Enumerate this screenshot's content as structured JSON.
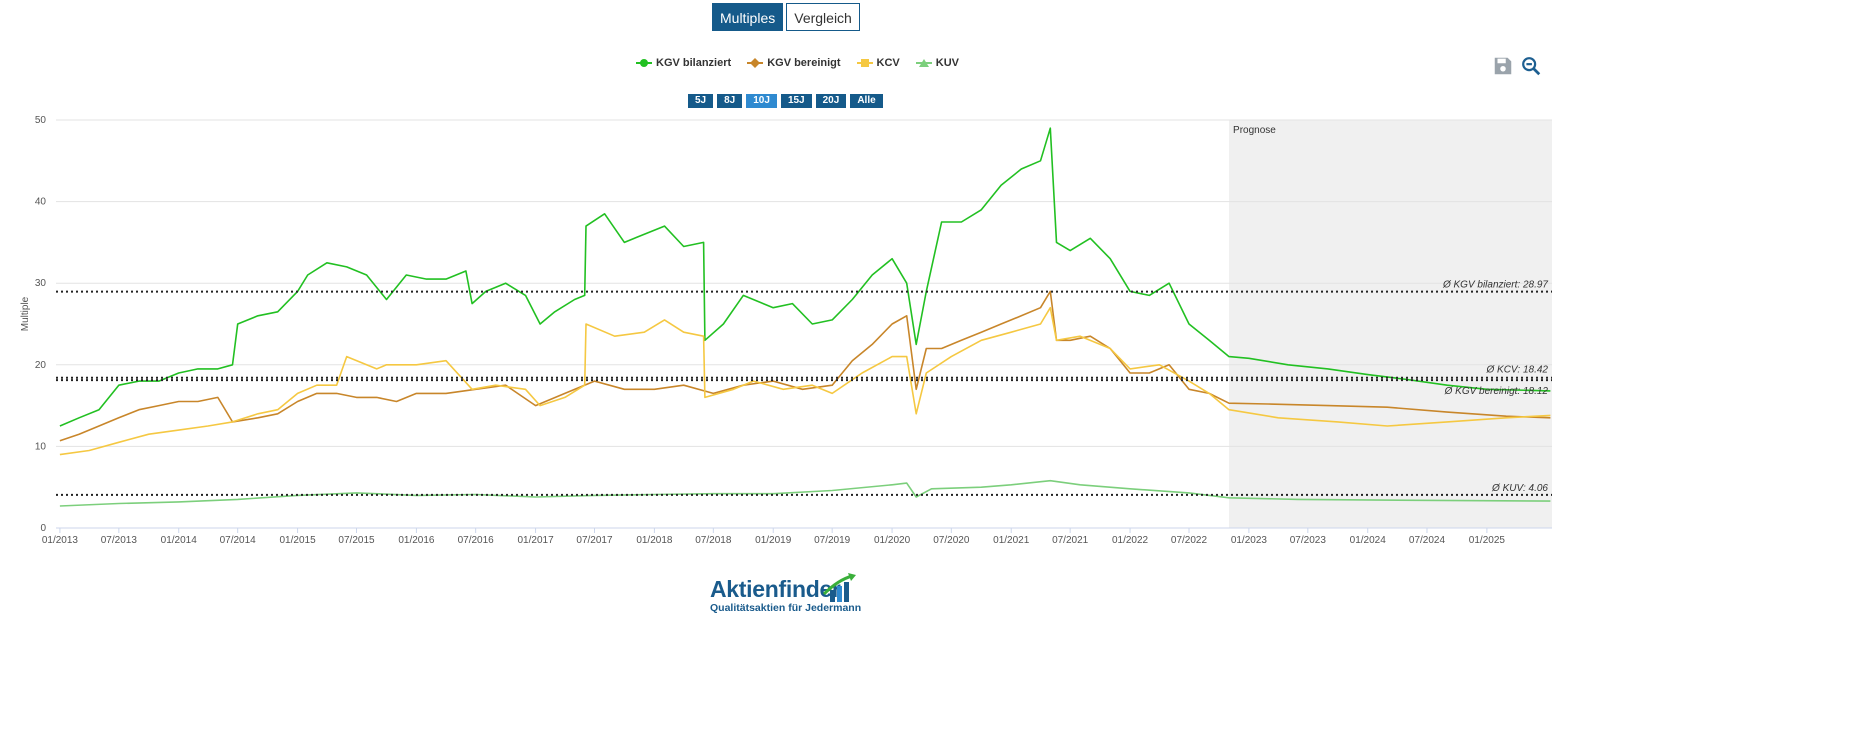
{
  "toolbar": {
    "multiples_label": "Multiples",
    "vergleich_label": "Vergleich"
  },
  "range_buttons": [
    "5J",
    "8J",
    "10J",
    "15J",
    "20J",
    "Alle"
  ],
  "active_range": "10J",
  "icons": {
    "save": "save-icon",
    "zoom_out": "zoom-out-icon"
  },
  "logo": {
    "title": "Aktienfinder",
    "subtitle": "Qualitätsaktien für Jedermann"
  },
  "chart_data": {
    "type": "line",
    "title": "",
    "xlabel": "",
    "ylabel": "Multiple",
    "ylim": [
      0,
      50
    ],
    "y_ticks": [
      0,
      10,
      20,
      30,
      40,
      50
    ],
    "x_range": [
      "2012-12-20",
      "2025-07-20"
    ],
    "x_ticks": [
      "01/2013",
      "07/2013",
      "01/2014",
      "07/2014",
      "01/2015",
      "07/2015",
      "01/2016",
      "07/2016",
      "01/2017",
      "07/2017",
      "01/2018",
      "07/2018",
      "01/2019",
      "07/2019",
      "01/2020",
      "07/2020",
      "01/2021",
      "07/2021",
      "01/2022",
      "07/2022",
      "01/2023",
      "07/2023",
      "01/2024",
      "07/2024",
      "01/2025"
    ],
    "grid": true,
    "legend_position": "top-center",
    "forecast_band": {
      "label": "Prognose",
      "start": "2022-11-01",
      "end": "2025-07-20",
      "color": "#f0f0f0"
    },
    "series": [
      {
        "name": "KGV bilanziert",
        "color": "#22c022",
        "marker": "circle",
        "points": [
          [
            "2013-01-01",
            12.5
          ],
          [
            "2013-03-01",
            13.5
          ],
          [
            "2013-05-01",
            14.5
          ],
          [
            "2013-07-01",
            17.5
          ],
          [
            "2013-09-01",
            18
          ],
          [
            "2013-11-01",
            18
          ],
          [
            "2014-01-01",
            19
          ],
          [
            "2014-03-01",
            19.5
          ],
          [
            "2014-05-01",
            19.5
          ],
          [
            "2014-06-15",
            20
          ],
          [
            "2014-07-01",
            25
          ],
          [
            "2014-09-01",
            26
          ],
          [
            "2014-11-01",
            26.5
          ],
          [
            "2015-01-01",
            29
          ],
          [
            "2015-02-01",
            31
          ],
          [
            "2015-04-01",
            32.5
          ],
          [
            "2015-06-01",
            32
          ],
          [
            "2015-08-01",
            31
          ],
          [
            "2015-10-01",
            28
          ],
          [
            "2015-12-01",
            31
          ],
          [
            "2016-02-01",
            30.5
          ],
          [
            "2016-04-01",
            30.5
          ],
          [
            "2016-06-01",
            31.5
          ],
          [
            "2016-06-20",
            27.5
          ],
          [
            "2016-08-01",
            29
          ],
          [
            "2016-10-01",
            30
          ],
          [
            "2016-12-01",
            28.5
          ],
          [
            "2017-01-15",
            25
          ],
          [
            "2017-03-01",
            26.5
          ],
          [
            "2017-05-01",
            28
          ],
          [
            "2017-06-01",
            28.5
          ],
          [
            "2017-06-05",
            37
          ],
          [
            "2017-08-01",
            38.5
          ],
          [
            "2017-10-01",
            35
          ],
          [
            "2017-12-01",
            36
          ],
          [
            "2018-02-01",
            37
          ],
          [
            "2018-04-01",
            34.5
          ],
          [
            "2018-06-01",
            35
          ],
          [
            "2018-06-05",
            23
          ],
          [
            "2018-08-01",
            25
          ],
          [
            "2018-10-01",
            28.5
          ],
          [
            "2019-01-01",
            27
          ],
          [
            "2019-03-01",
            27.5
          ],
          [
            "2019-05-01",
            25
          ],
          [
            "2019-07-01",
            25.5
          ],
          [
            "2019-09-01",
            28
          ],
          [
            "2019-11-01",
            31
          ],
          [
            "2020-01-01",
            33
          ],
          [
            "2020-02-15",
            30
          ],
          [
            "2020-03-15",
            22.5
          ],
          [
            "2020-04-15",
            29
          ],
          [
            "2020-06-01",
            37.5
          ],
          [
            "2020-08-01",
            37.5
          ],
          [
            "2020-10-01",
            39
          ],
          [
            "2020-12-01",
            42
          ],
          [
            "2021-02-01",
            44
          ],
          [
            "2021-04-01",
            45
          ],
          [
            "2021-05-01",
            49
          ],
          [
            "2021-05-20",
            35
          ],
          [
            "2021-07-01",
            34
          ],
          [
            "2021-09-01",
            35.5
          ],
          [
            "2021-11-01",
            33
          ],
          [
            "2022-01-01",
            29
          ],
          [
            "2022-03-01",
            28.5
          ],
          [
            "2022-05-01",
            30
          ],
          [
            "2022-07-01",
            25
          ],
          [
            "2022-09-01",
            23
          ],
          [
            "2022-11-01",
            21
          ],
          [
            "2023-01-01",
            20.8
          ],
          [
            "2023-05-01",
            20
          ],
          [
            "2023-09-01",
            19.5
          ],
          [
            "2024-01-01",
            18.8
          ],
          [
            "2024-05-01",
            18.2
          ],
          [
            "2024-09-01",
            17.5
          ],
          [
            "2025-01-01",
            17
          ],
          [
            "2025-07-15",
            16.8
          ]
        ]
      },
      {
        "name": "KGV bereinigt",
        "color": "#c8862a",
        "marker": "diamond",
        "points": [
          [
            "2013-01-01",
            10.7
          ],
          [
            "2013-03-01",
            11.5
          ],
          [
            "2013-05-01",
            12.5
          ],
          [
            "2013-07-01",
            13.5
          ],
          [
            "2013-09-01",
            14.5
          ],
          [
            "2013-11-01",
            15
          ],
          [
            "2014-01-01",
            15.5
          ],
          [
            "2014-03-01",
            15.5
          ],
          [
            "2014-05-01",
            16
          ],
          [
            "2014-06-15",
            13
          ],
          [
            "2014-09-01",
            13.5
          ],
          [
            "2014-11-01",
            14
          ],
          [
            "2015-01-01",
            15.5
          ],
          [
            "2015-03-01",
            16.5
          ],
          [
            "2015-05-01",
            16.5
          ],
          [
            "2015-07-01",
            16
          ],
          [
            "2015-09-01",
            16
          ],
          [
            "2015-11-01",
            15.5
          ],
          [
            "2016-01-01",
            16.5
          ],
          [
            "2016-04-01",
            16.5
          ],
          [
            "2016-07-01",
            17
          ],
          [
            "2016-10-01",
            17.5
          ],
          [
            "2017-01-01",
            15
          ],
          [
            "2017-04-01",
            16.5
          ],
          [
            "2017-07-01",
            18
          ],
          [
            "2017-10-01",
            17
          ],
          [
            "2018-01-01",
            17
          ],
          [
            "2018-04-01",
            17.5
          ],
          [
            "2018-07-01",
            16.5
          ],
          [
            "2018-10-01",
            17.5
          ],
          [
            "2019-01-01",
            18
          ],
          [
            "2019-04-01",
            17
          ],
          [
            "2019-07-01",
            17.5
          ],
          [
            "2019-09-01",
            20.5
          ],
          [
            "2019-11-01",
            22.5
          ],
          [
            "2020-01-01",
            25
          ],
          [
            "2020-02-15",
            26
          ],
          [
            "2020-03-15",
            17
          ],
          [
            "2020-04-15",
            22
          ],
          [
            "2020-06-01",
            22
          ],
          [
            "2020-08-01",
            23
          ],
          [
            "2020-10-01",
            24
          ],
          [
            "2020-12-01",
            25
          ],
          [
            "2021-02-01",
            26
          ],
          [
            "2021-04-01",
            27
          ],
          [
            "2021-05-01",
            29
          ],
          [
            "2021-05-20",
            23
          ],
          [
            "2021-07-01",
            23
          ],
          [
            "2021-09-01",
            23.5
          ],
          [
            "2021-11-01",
            22
          ],
          [
            "2022-01-01",
            19
          ],
          [
            "2022-03-01",
            19
          ],
          [
            "2022-05-01",
            20
          ],
          [
            "2022-07-01",
            17
          ],
          [
            "2022-09-01",
            16.5
          ],
          [
            "2022-11-01",
            15.3
          ],
          [
            "2023-03-01",
            15.2
          ],
          [
            "2023-09-01",
            15
          ],
          [
            "2024-03-01",
            14.8
          ],
          [
            "2024-09-01",
            14.2
          ],
          [
            "2025-03-01",
            13.7
          ],
          [
            "2025-07-15",
            13.5
          ]
        ]
      },
      {
        "name": "KCV",
        "color": "#f5c842",
        "marker": "square",
        "points": [
          [
            "2013-01-01",
            9
          ],
          [
            "2013-04-01",
            9.5
          ],
          [
            "2013-07-01",
            10.5
          ],
          [
            "2013-10-01",
            11.5
          ],
          [
            "2014-01-01",
            12
          ],
          [
            "2014-04-01",
            12.5
          ],
          [
            "2014-06-15",
            13
          ],
          [
            "2014-09-01",
            14
          ],
          [
            "2014-11-01",
            14.5
          ],
          [
            "2015-01-01",
            16.5
          ],
          [
            "2015-03-01",
            17.5
          ],
          [
            "2015-05-01",
            17.5
          ],
          [
            "2015-06-01",
            21
          ],
          [
            "2015-09-01",
            19.5
          ],
          [
            "2015-10-01",
            20
          ],
          [
            "2016-01-01",
            20
          ],
          [
            "2016-04-01",
            20.5
          ],
          [
            "2016-06-20",
            17
          ],
          [
            "2016-09-01",
            17.5
          ],
          [
            "2016-12-01",
            17
          ],
          [
            "2017-01-15",
            15
          ],
          [
            "2017-04-01",
            16
          ],
          [
            "2017-06-01",
            17.5
          ],
          [
            "2017-06-05",
            25
          ],
          [
            "2017-09-01",
            23.5
          ],
          [
            "2017-12-01",
            24
          ],
          [
            "2018-02-01",
            25.5
          ],
          [
            "2018-04-01",
            24
          ],
          [
            "2018-06-01",
            23.5
          ],
          [
            "2018-06-05",
            16
          ],
          [
            "2018-09-01",
            17
          ],
          [
            "2018-11-01",
            18
          ],
          [
            "2019-02-01",
            17
          ],
          [
            "2019-05-01",
            17.5
          ],
          [
            "2019-07-01",
            16.5
          ],
          [
            "2019-10-01",
            19
          ],
          [
            "2020-01-01",
            21
          ],
          [
            "2020-02-15",
            21
          ],
          [
            "2020-03-15",
            14
          ],
          [
            "2020-04-15",
            19
          ],
          [
            "2020-07-01",
            21
          ],
          [
            "2020-10-01",
            23
          ],
          [
            "2021-01-01",
            24
          ],
          [
            "2021-04-01",
            25
          ],
          [
            "2021-05-01",
            27
          ],
          [
            "2021-05-20",
            23
          ],
          [
            "2021-08-01",
            23.5
          ],
          [
            "2021-11-01",
            22
          ],
          [
            "2022-01-01",
            19.5
          ],
          [
            "2022-04-01",
            20
          ],
          [
            "2022-07-01",
            18
          ],
          [
            "2022-09-01",
            16.5
          ],
          [
            "2022-11-01",
            14.5
          ],
          [
            "2023-04-01",
            13.5
          ],
          [
            "2023-10-01",
            13
          ],
          [
            "2024-03-01",
            12.5
          ],
          [
            "2024-09-01",
            13
          ],
          [
            "2025-03-01",
            13.5
          ],
          [
            "2025-07-15",
            13.8
          ]
        ]
      },
      {
        "name": "KUV",
        "color": "#7ccf7c",
        "marker": "triangle",
        "points": [
          [
            "2013-01-01",
            2.7
          ],
          [
            "2013-07-01",
            3
          ],
          [
            "2014-01-01",
            3.2
          ],
          [
            "2014-07-01",
            3.5
          ],
          [
            "2015-01-01",
            4
          ],
          [
            "2015-07-01",
            4.3
          ],
          [
            "2016-01-01",
            4
          ],
          [
            "2016-07-01",
            4.1
          ],
          [
            "2017-01-01",
            3.8
          ],
          [
            "2017-07-01",
            4
          ],
          [
            "2018-01-01",
            4.1
          ],
          [
            "2018-07-01",
            4.2
          ],
          [
            "2019-01-01",
            4.2
          ],
          [
            "2019-07-01",
            4.6
          ],
          [
            "2020-01-01",
            5.3
          ],
          [
            "2020-02-15",
            5.5
          ],
          [
            "2020-03-15",
            3.8
          ],
          [
            "2020-05-01",
            4.8
          ],
          [
            "2020-10-01",
            5
          ],
          [
            "2021-01-01",
            5.3
          ],
          [
            "2021-05-01",
            5.8
          ],
          [
            "2021-08-01",
            5.3
          ],
          [
            "2022-01-01",
            4.8
          ],
          [
            "2022-07-01",
            4.3
          ],
          [
            "2022-11-01",
            3.7
          ],
          [
            "2023-06-01",
            3.5
          ],
          [
            "2024-06-01",
            3.4
          ],
          [
            "2025-07-15",
            3.3
          ]
        ]
      }
    ],
    "averages": [
      {
        "label": "Ø KGV bilanziert: 28.97",
        "value": 28.97
      },
      {
        "label": "Ø KCV: 18.42",
        "value": 18.42
      },
      {
        "label": "Ø KGV bereinigt: 18.12",
        "value": 18.12
      },
      {
        "label": "Ø KUV: 4.06",
        "value": 4.06
      }
    ]
  }
}
